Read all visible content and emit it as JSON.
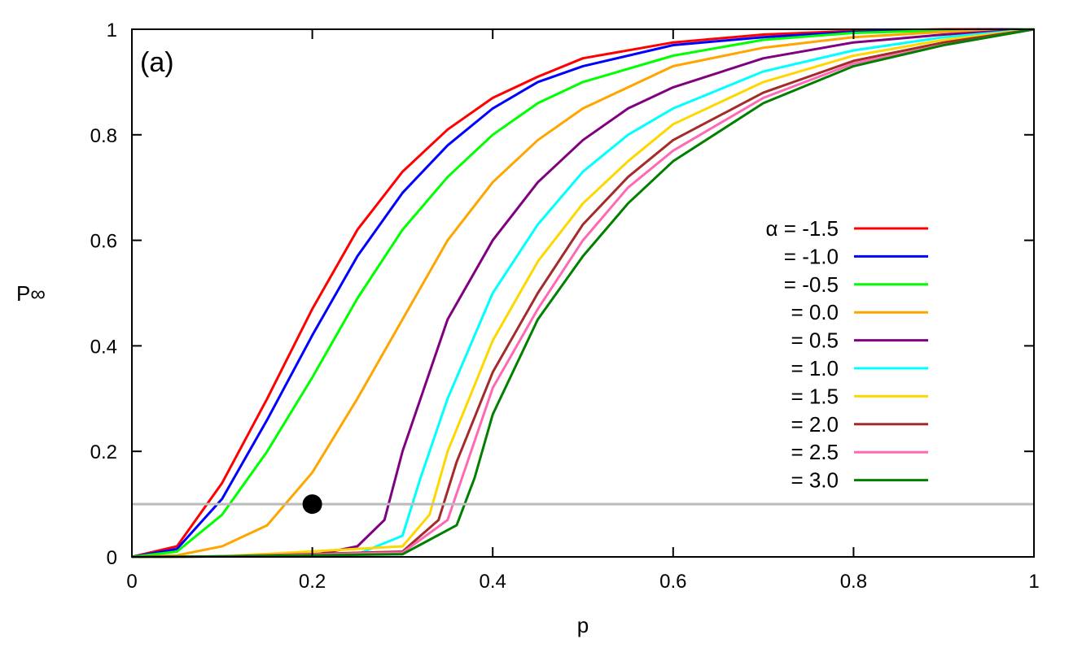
{
  "chart_data": {
    "type": "line",
    "panel_label": "(a)",
    "xlabel": "p",
    "ylabel": "P∞",
    "xlim": [
      0,
      1
    ],
    "ylim": [
      0,
      1
    ],
    "xticks": [
      "0",
      "0.2",
      "0.4",
      "0.6",
      "0.8",
      "1"
    ],
    "yticks": [
      "0",
      "0.2",
      "0.4",
      "0.6",
      "0.8",
      "1"
    ],
    "grid": false,
    "legend_placement": "center-right",
    "reference_line": {
      "y": 0.1,
      "color": "#bbbbbb"
    },
    "marker_point": {
      "x": 0.2,
      "y": 0.1,
      "color": "#000000"
    },
    "series": [
      {
        "name": "α = -1.5",
        "color": "#ff0000",
        "points": [
          [
            0,
            0
          ],
          [
            0.05,
            0.02
          ],
          [
            0.1,
            0.14
          ],
          [
            0.15,
            0.3
          ],
          [
            0.2,
            0.47
          ],
          [
            0.25,
            0.62
          ],
          [
            0.3,
            0.73
          ],
          [
            0.35,
            0.81
          ],
          [
            0.4,
            0.87
          ],
          [
            0.45,
            0.91
          ],
          [
            0.5,
            0.945
          ],
          [
            0.6,
            0.975
          ],
          [
            0.7,
            0.99
          ],
          [
            0.8,
            0.997
          ],
          [
            0.9,
            1
          ],
          [
            1,
            1
          ]
        ]
      },
      {
        "name": "= -1.0",
        "color": "#0000ff",
        "points": [
          [
            0,
            0
          ],
          [
            0.05,
            0.015
          ],
          [
            0.1,
            0.11
          ],
          [
            0.15,
            0.26
          ],
          [
            0.2,
            0.42
          ],
          [
            0.25,
            0.57
          ],
          [
            0.3,
            0.69
          ],
          [
            0.35,
            0.78
          ],
          [
            0.4,
            0.85
          ],
          [
            0.45,
            0.9
          ],
          [
            0.5,
            0.93
          ],
          [
            0.6,
            0.97
          ],
          [
            0.7,
            0.985
          ],
          [
            0.8,
            0.995
          ],
          [
            0.9,
            0.999
          ],
          [
            1,
            1
          ]
        ]
      },
      {
        "name": "= -0.5",
        "color": "#00ff00",
        "points": [
          [
            0,
            0
          ],
          [
            0.05,
            0.01
          ],
          [
            0.1,
            0.08
          ],
          [
            0.15,
            0.2
          ],
          [
            0.2,
            0.34
          ],
          [
            0.25,
            0.49
          ],
          [
            0.3,
            0.62
          ],
          [
            0.35,
            0.72
          ],
          [
            0.4,
            0.8
          ],
          [
            0.45,
            0.86
          ],
          [
            0.5,
            0.9
          ],
          [
            0.6,
            0.95
          ],
          [
            0.7,
            0.98
          ],
          [
            0.8,
            0.993
          ],
          [
            0.9,
            0.998
          ],
          [
            1,
            1
          ]
        ]
      },
      {
        "name": "=  0.0",
        "color": "#ffa500",
        "points": [
          [
            0,
            0
          ],
          [
            0.05,
            0.003
          ],
          [
            0.1,
            0.02
          ],
          [
            0.15,
            0.06
          ],
          [
            0.2,
            0.16
          ],
          [
            0.25,
            0.3
          ],
          [
            0.3,
            0.45
          ],
          [
            0.35,
            0.6
          ],
          [
            0.4,
            0.71
          ],
          [
            0.45,
            0.79
          ],
          [
            0.5,
            0.85
          ],
          [
            0.6,
            0.93
          ],
          [
            0.7,
            0.965
          ],
          [
            0.8,
            0.985
          ],
          [
            0.9,
            0.995
          ],
          [
            1,
            1
          ]
        ]
      },
      {
        "name": "=  0.5",
        "color": "#800080",
        "points": [
          [
            0,
            0
          ],
          [
            0.1,
            0.001
          ],
          [
            0.2,
            0.003
          ],
          [
            0.25,
            0.02
          ],
          [
            0.28,
            0.07
          ],
          [
            0.3,
            0.2
          ],
          [
            0.35,
            0.45
          ],
          [
            0.4,
            0.6
          ],
          [
            0.45,
            0.71
          ],
          [
            0.5,
            0.79
          ],
          [
            0.55,
            0.85
          ],
          [
            0.6,
            0.89
          ],
          [
            0.7,
            0.945
          ],
          [
            0.8,
            0.975
          ],
          [
            0.9,
            0.99
          ],
          [
            1,
            1
          ]
        ]
      },
      {
        "name": "=  1.0",
        "color": "#00ffff",
        "points": [
          [
            0,
            0
          ],
          [
            0.1,
            0.001
          ],
          [
            0.25,
            0.005
          ],
          [
            0.3,
            0.04
          ],
          [
            0.32,
            0.15
          ],
          [
            0.35,
            0.3
          ],
          [
            0.4,
            0.5
          ],
          [
            0.45,
            0.63
          ],
          [
            0.5,
            0.73
          ],
          [
            0.55,
            0.8
          ],
          [
            0.6,
            0.85
          ],
          [
            0.7,
            0.92
          ],
          [
            0.8,
            0.96
          ],
          [
            0.9,
            0.985
          ],
          [
            1,
            1
          ]
        ]
      },
      {
        "name": "=  1.5",
        "color": "#ffd700",
        "points": [
          [
            0,
            0
          ],
          [
            0.1,
            0.001
          ],
          [
            0.3,
            0.02
          ],
          [
            0.33,
            0.08
          ],
          [
            0.35,
            0.2
          ],
          [
            0.4,
            0.41
          ],
          [
            0.45,
            0.56
          ],
          [
            0.5,
            0.67
          ],
          [
            0.55,
            0.75
          ],
          [
            0.6,
            0.82
          ],
          [
            0.7,
            0.9
          ],
          [
            0.8,
            0.95
          ],
          [
            0.9,
            0.98
          ],
          [
            1,
            1
          ]
        ]
      },
      {
        "name": "=  2.0",
        "color": "#a52a2a",
        "points": [
          [
            0,
            0
          ],
          [
            0.1,
            0.001
          ],
          [
            0.3,
            0.01
          ],
          [
            0.34,
            0.07
          ],
          [
            0.36,
            0.18
          ],
          [
            0.4,
            0.35
          ],
          [
            0.45,
            0.5
          ],
          [
            0.5,
            0.63
          ],
          [
            0.55,
            0.72
          ],
          [
            0.6,
            0.79
          ],
          [
            0.7,
            0.88
          ],
          [
            0.8,
            0.94
          ],
          [
            0.9,
            0.975
          ],
          [
            1,
            1
          ]
        ]
      },
      {
        "name": "=  2.5",
        "color": "#ff69b4",
        "points": [
          [
            0,
            0
          ],
          [
            0.1,
            0.001
          ],
          [
            0.3,
            0.008
          ],
          [
            0.35,
            0.07
          ],
          [
            0.37,
            0.17
          ],
          [
            0.4,
            0.32
          ],
          [
            0.45,
            0.47
          ],
          [
            0.5,
            0.6
          ],
          [
            0.55,
            0.7
          ],
          [
            0.6,
            0.77
          ],
          [
            0.7,
            0.87
          ],
          [
            0.8,
            0.935
          ],
          [
            0.9,
            0.97
          ],
          [
            1,
            1
          ]
        ]
      },
      {
        "name": "=  3.0",
        "color": "#008000",
        "points": [
          [
            0,
            0
          ],
          [
            0.1,
            0.001
          ],
          [
            0.3,
            0.005
          ],
          [
            0.36,
            0.06
          ],
          [
            0.38,
            0.15
          ],
          [
            0.4,
            0.27
          ],
          [
            0.45,
            0.45
          ],
          [
            0.5,
            0.57
          ],
          [
            0.55,
            0.67
          ],
          [
            0.6,
            0.75
          ],
          [
            0.7,
            0.86
          ],
          [
            0.8,
            0.93
          ],
          [
            0.9,
            0.97
          ],
          [
            1,
            1
          ]
        ]
      }
    ]
  }
}
